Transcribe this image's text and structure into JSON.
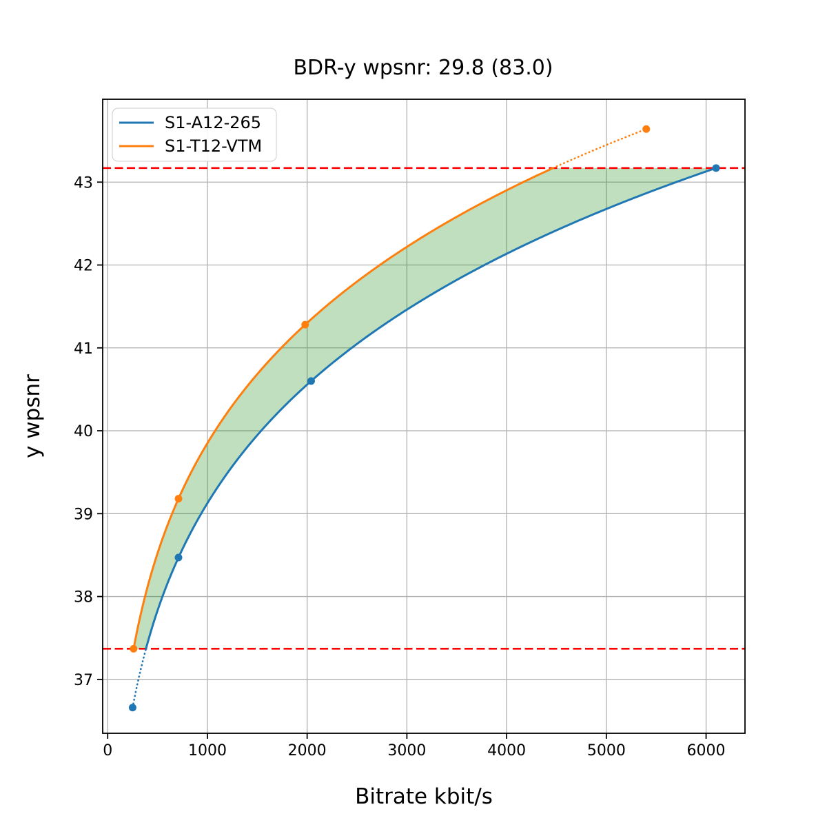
{
  "chart_data": {
    "type": "line",
    "title": "BDR-y wpsnr: 29.8 (83.0)",
    "xlabel": "Bitrate kbit/s",
    "ylabel": "y wpsnr",
    "xlim": [
      -50,
      6390
    ],
    "ylim": [
      36.35,
      44.0
    ],
    "x_ticks": [
      0,
      1000,
      2000,
      3000,
      4000,
      5000,
      6000
    ],
    "y_ticks": [
      37,
      38,
      39,
      40,
      41,
      42,
      43
    ],
    "grid": true,
    "legend_position": "upper-left",
    "interpolation": "pchip-log-x",
    "series": [
      {
        "name": "S1-A12-265",
        "color": "#1f77b4",
        "points": [
          [
            250,
            36.66
          ],
          [
            710,
            38.47
          ],
          [
            2040,
            40.6
          ],
          [
            6100,
            43.17
          ]
        ]
      },
      {
        "name": "S1-T12-VTM",
        "color": "#ff7f0e",
        "points": [
          [
            260,
            37.37
          ],
          [
            710,
            39.18
          ],
          [
            1980,
            41.28
          ],
          [
            5400,
            43.64
          ]
        ]
      }
    ],
    "bd_bounds": {
      "lower": 37.37,
      "upper": 43.17,
      "line_color": "#ff0000",
      "line_style": "dashed"
    },
    "fill_between": {
      "color": "#008000",
      "opacity": 0.25
    }
  },
  "colors": {
    "background": "#ffffff",
    "grid": "#b0b0b0",
    "frame": "#000000",
    "legend_border": "#cccccc"
  }
}
